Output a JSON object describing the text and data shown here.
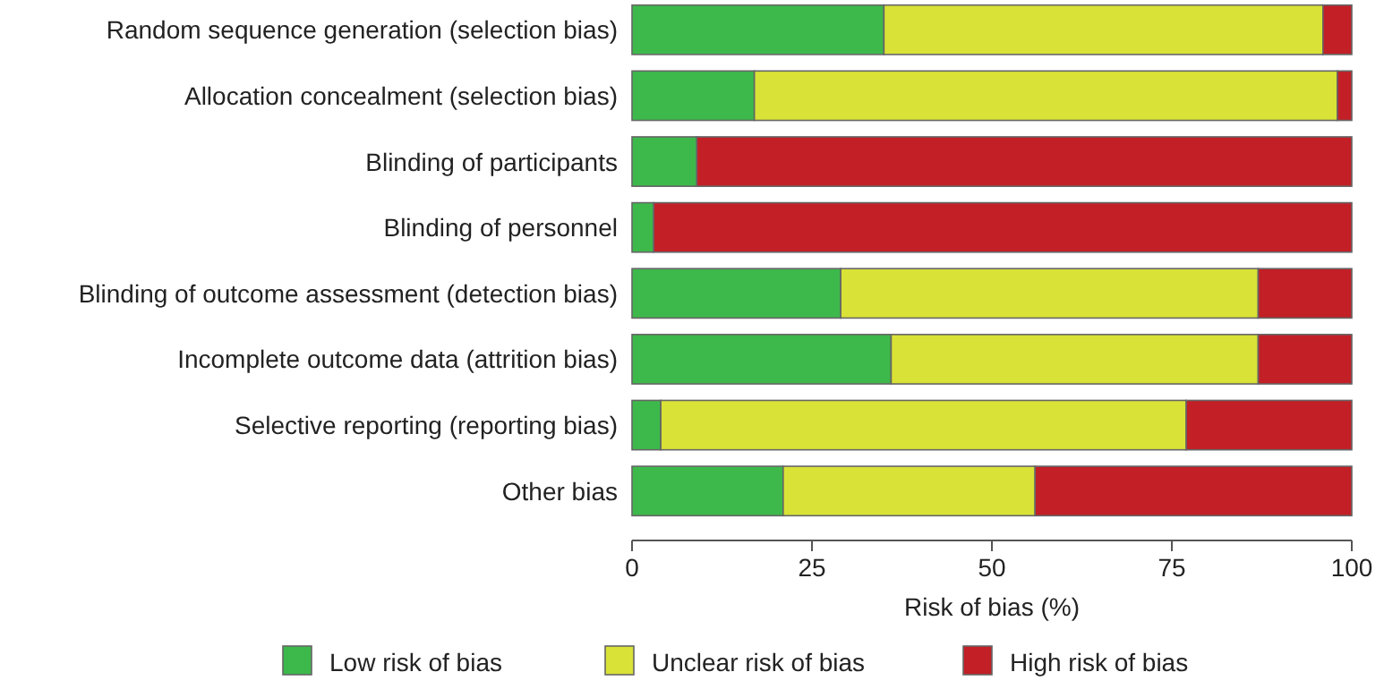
{
  "chart_data": {
    "type": "bar",
    "orientation": "horizontal",
    "stacked": true,
    "categories": [
      "Random sequence generation (selection bias)",
      "Allocation concealment (selection bias)",
      "Blinding of participants",
      "Blinding of personnel",
      "Blinding of outcome assessment (detection bias)",
      "Incomplete outcome data (attrition bias)",
      "Selective reporting (reporting bias)",
      "Other bias"
    ],
    "series": [
      {
        "name": "Low risk of bias",
        "color": "#3db94b",
        "values": [
          35,
          17,
          9,
          3,
          29,
          36,
          4,
          21
        ]
      },
      {
        "name": "Unclear risk of bias",
        "color": "#d9e236",
        "values": [
          61,
          81,
          0,
          0,
          58,
          51,
          73,
          35
        ]
      },
      {
        "name": "High risk of bias",
        "color": "#c21f26",
        "values": [
          4,
          2,
          91,
          97,
          13,
          13,
          23,
          44
        ]
      }
    ],
    "xlim": [
      0,
      100
    ],
    "xticks": [
      0,
      25,
      50,
      75,
      100
    ],
    "xlabel": "Risk of bias (%)",
    "legend": "bottom",
    "grid": false
  }
}
